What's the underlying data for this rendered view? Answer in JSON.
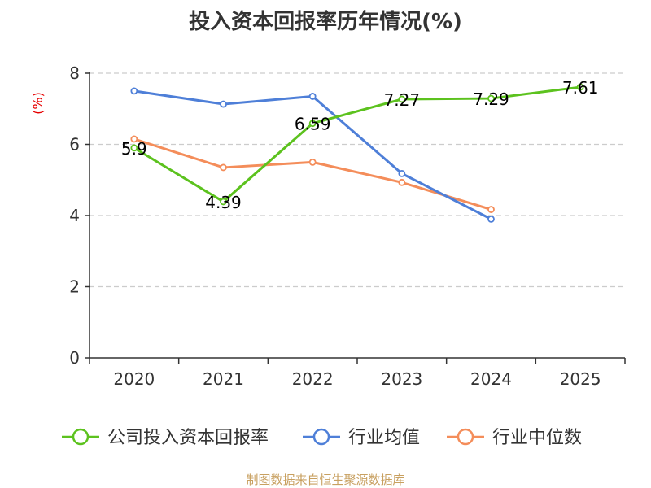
{
  "chart_data": {
    "type": "line",
    "title": "投入资本回报率历年情况(%)",
    "xlabel": "",
    "ylabel": "(%)",
    "categories": [
      "2020",
      "2021",
      "2022",
      "2023",
      "2024",
      "2025"
    ],
    "ylim": [
      0,
      8
    ],
    "yticks": [
      0,
      2,
      4,
      6,
      8
    ],
    "grid": true,
    "legend_position": "bottom",
    "series": [
      {
        "name": "公司投入资本回报率",
        "color": "#5cc21e",
        "values": [
          5.9,
          4.39,
          6.59,
          7.27,
          7.29,
          7.61
        ],
        "labels": [
          "5.9",
          "4.39",
          "6.59",
          "7.27",
          "7.29",
          "7.61"
        ]
      },
      {
        "name": "行业均值",
        "color": "#4e7fd8",
        "values": [
          7.5,
          7.13,
          7.35,
          5.18,
          3.9,
          null
        ]
      },
      {
        "name": "行业中位数",
        "color": "#f48d5a",
        "values": [
          6.15,
          5.35,
          5.5,
          4.93,
          4.17,
          null
        ]
      }
    ]
  },
  "source_note": "制图数据来自恒生聚源数据库"
}
